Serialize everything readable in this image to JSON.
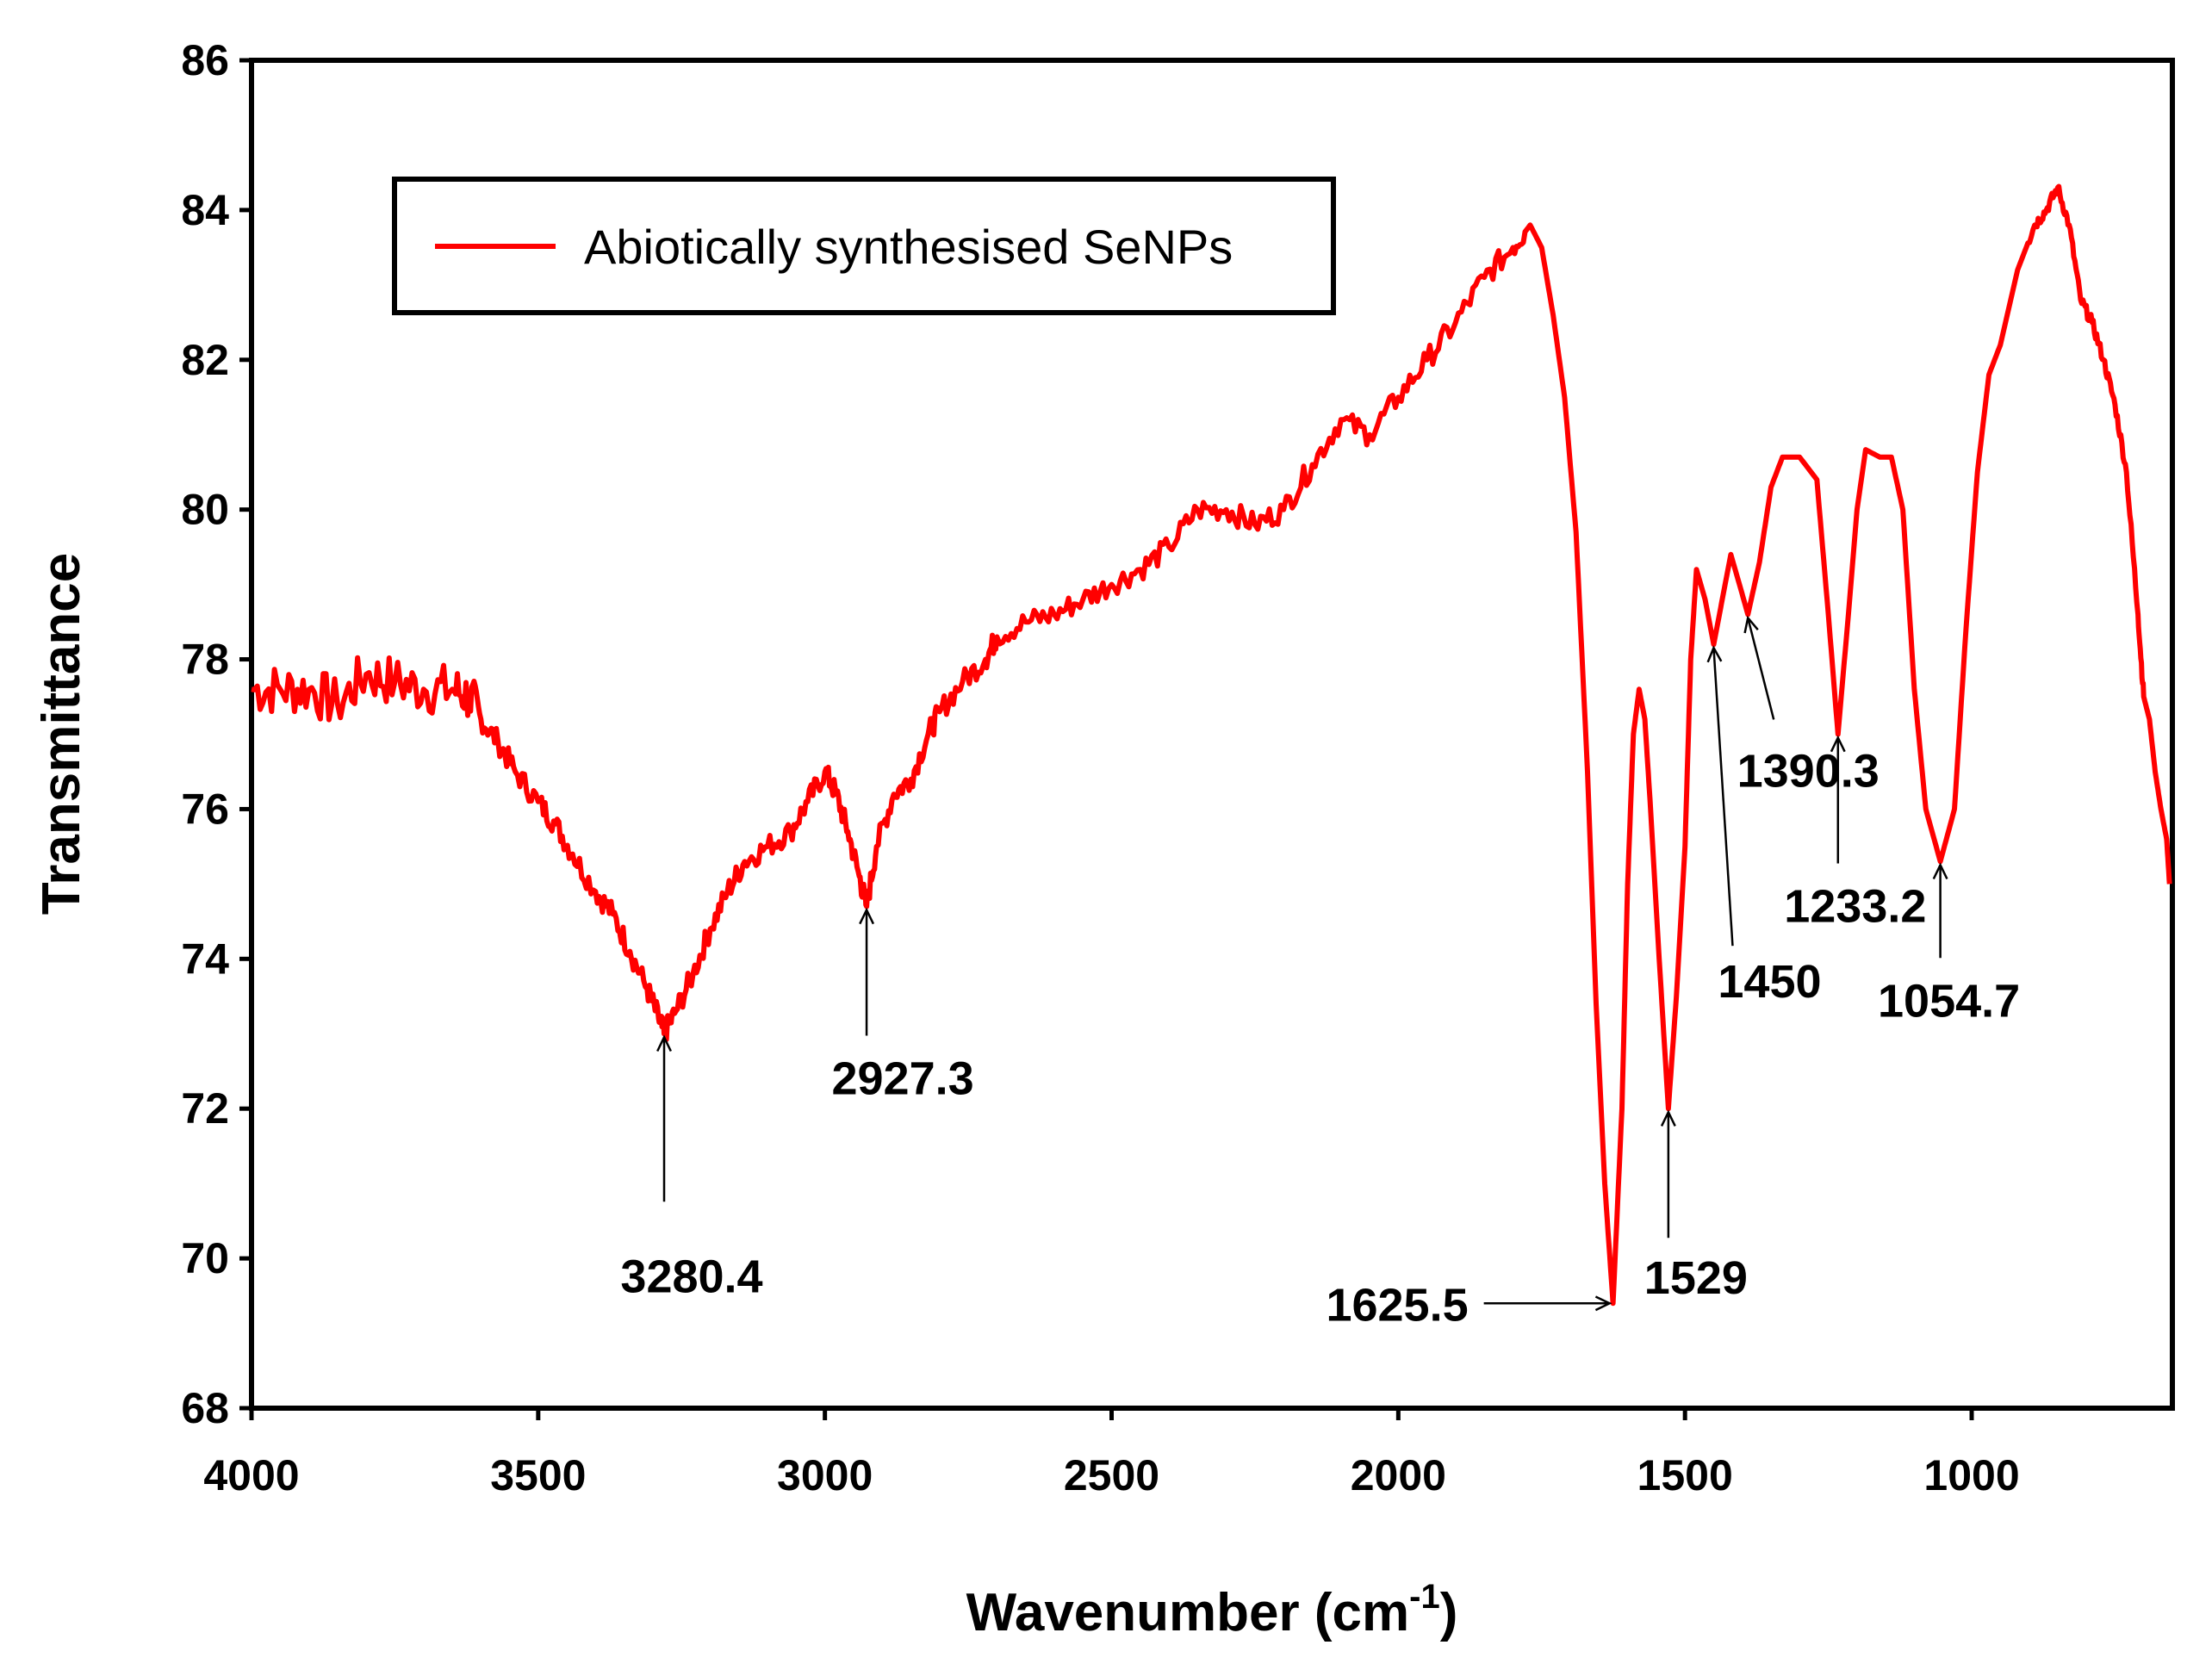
{
  "chart_data": {
    "type": "line",
    "title": "",
    "xlabel": "Wavenumber (cm",
    "xlabel_superscript": "-1",
    "xlabel_suffix": ")",
    "ylabel": "Transmittance",
    "xlim": [
      4000,
      650
    ],
    "ylim": [
      68,
      86
    ],
    "x_reversed": true,
    "x_ticks": [
      4000,
      3500,
      3000,
      2500,
      2000,
      1500,
      1000
    ],
    "y_ticks": [
      68,
      70,
      72,
      74,
      76,
      78,
      80,
      82,
      84,
      86
    ],
    "grid": false,
    "legend": {
      "position": "top-left",
      "entries": [
        "Abiotically synthesised SeNPs"
      ]
    },
    "series": [
      {
        "name": "Abiotically synthesised SeNPs",
        "color": "#ff0000",
        "points": [
          [
            4000,
            77.6
          ],
          [
            3950,
            77.6
          ],
          [
            3900,
            77.6
          ],
          [
            3850,
            77.4
          ],
          [
            3800,
            77.8
          ],
          [
            3750,
            77.7
          ],
          [
            3700,
            77.6
          ],
          [
            3650,
            77.6
          ],
          [
            3620,
            77.5
          ],
          [
            3600,
            77.2
          ],
          [
            3570,
            76.9
          ],
          [
            3540,
            76.5
          ],
          [
            3500,
            76.1
          ],
          [
            3470,
            75.8
          ],
          [
            3440,
            75.4
          ],
          [
            3400,
            74.9
          ],
          [
            3370,
            74.6
          ],
          [
            3340,
            74.1
          ],
          [
            3310,
            73.6
          ],
          [
            3290,
            73.2
          ],
          [
            3280.4,
            73.0
          ],
          [
            3260,
            73.3
          ],
          [
            3230,
            73.8
          ],
          [
            3200,
            74.4
          ],
          [
            3170,
            74.9
          ],
          [
            3140,
            75.3
          ],
          [
            3100,
            75.5
          ],
          [
            3060,
            75.7
          ],
          [
            3030,
            76.1
          ],
          [
            3000,
            76.5
          ],
          [
            2980,
            76.2
          ],
          [
            2960,
            75.7
          ],
          [
            2940,
            75.1
          ],
          [
            2927.3,
            74.7
          ],
          [
            2910,
            75.5
          ],
          [
            2880,
            76.2
          ],
          [
            2850,
            76.4
          ],
          [
            2820,
            77.0
          ],
          [
            2800,
            77.3
          ],
          [
            2760,
            77.7
          ],
          [
            2720,
            78.0
          ],
          [
            2700,
            78.3
          ],
          [
            2650,
            78.5
          ],
          [
            2600,
            78.6
          ],
          [
            2550,
            78.8
          ],
          [
            2500,
            79.0
          ],
          [
            2450,
            79.2
          ],
          [
            2400,
            79.5
          ],
          [
            2350,
            80.0
          ],
          [
            2300,
            80.0
          ],
          [
            2250,
            79.8
          ],
          [
            2200,
            80.0
          ],
          [
            2150,
            80.6
          ],
          [
            2100,
            81.2
          ],
          [
            2050,
            81.0
          ],
          [
            2000,
            81.5
          ],
          [
            1950,
            82.0
          ],
          [
            1900,
            82.5
          ],
          [
            1850,
            83.1
          ],
          [
            1800,
            83.5
          ],
          [
            1770,
            83.8
          ],
          [
            1750,
            83.5
          ],
          [
            1730,
            82.6
          ],
          [
            1710,
            81.5
          ],
          [
            1690,
            79.7
          ],
          [
            1670,
            76.5
          ],
          [
            1655,
            73.4
          ],
          [
            1640,
            71.0
          ],
          [
            1625.5,
            69.4
          ],
          [
            1610,
            72.0
          ],
          [
            1600,
            75.0
          ],
          [
            1590,
            77.0
          ],
          [
            1580,
            77.6
          ],
          [
            1570,
            77.2
          ],
          [
            1560,
            76.0
          ],
          [
            1545,
            74.0
          ],
          [
            1529,
            72.0
          ],
          [
            1515,
            73.5
          ],
          [
            1500,
            75.5
          ],
          [
            1490,
            78.0
          ],
          [
            1480,
            79.2
          ],
          [
            1465,
            78.8
          ],
          [
            1450,
            78.2
          ],
          [
            1435,
            78.8
          ],
          [
            1420,
            79.4
          ],
          [
            1405,
            79.0
          ],
          [
            1390.3,
            78.6
          ],
          [
            1370,
            79.3
          ],
          [
            1350,
            80.3
          ],
          [
            1330,
            80.7
          ],
          [
            1300,
            80.7
          ],
          [
            1270,
            80.4
          ],
          [
            1250,
            78.6
          ],
          [
            1233.2,
            77.0
          ],
          [
            1215,
            78.6
          ],
          [
            1200,
            80.0
          ],
          [
            1185,
            80.8
          ],
          [
            1160,
            80.7
          ],
          [
            1140,
            80.7
          ],
          [
            1120,
            80.0
          ],
          [
            1100,
            77.6
          ],
          [
            1080,
            76.0
          ],
          [
            1054.7,
            75.3
          ],
          [
            1030,
            76.0
          ],
          [
            1010,
            78.4
          ],
          [
            990,
            80.5
          ],
          [
            970,
            81.8
          ],
          [
            950,
            82.2
          ],
          [
            920,
            83.2
          ],
          [
            890,
            83.8
          ],
          [
            870,
            84.0
          ],
          [
            850,
            84.3
          ],
          [
            830,
            83.8
          ],
          [
            810,
            82.8
          ],
          [
            790,
            82.5
          ],
          [
            770,
            82.0
          ],
          [
            750,
            81.4
          ],
          [
            730,
            80.5
          ],
          [
            710,
            78.6
          ],
          [
            700,
            77.5
          ],
          [
            690,
            77.2
          ],
          [
            680,
            76.5
          ],
          [
            670,
            76.0
          ],
          [
            660,
            75.6
          ],
          [
            655,
            75.0
          ]
        ]
      }
    ],
    "annotations": [
      {
        "label": "3280.4",
        "x": 3280.4,
        "y": 73.0
      },
      {
        "label": "2927.3",
        "x": 2927.3,
        "y": 74.7
      },
      {
        "label": "1625.5",
        "x": 1625.5,
        "y": 69.4
      },
      {
        "label": "1529",
        "x": 1529,
        "y": 72.0
      },
      {
        "label": "1450",
        "x": 1450,
        "y": 78.2
      },
      {
        "label": "1390.3",
        "x": 1390.3,
        "y": 78.6
      },
      {
        "label": "1233.2",
        "x": 1233.2,
        "y": 77.0
      },
      {
        "label": "1054.7",
        "x": 1054.7,
        "y": 75.3
      }
    ]
  }
}
